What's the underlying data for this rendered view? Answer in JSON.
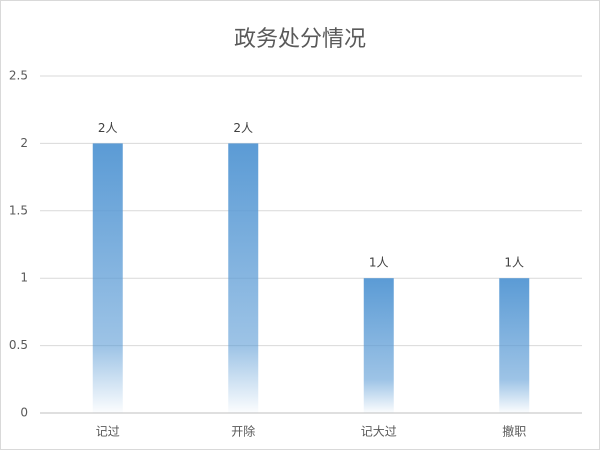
{
  "chart_data": {
    "type": "bar",
    "title": "政务处分情况",
    "categories": [
      "记过",
      "开除",
      "记大过",
      "撤职"
    ],
    "values": [
      2,
      2,
      1,
      1
    ],
    "value_labels": [
      "2人",
      "2人",
      "1人",
      "1人"
    ],
    "color": "#5b9bd5",
    "ylim": [
      0,
      2.5
    ],
    "yticks": [
      0,
      0.5,
      1,
      1.5,
      2,
      2.5
    ],
    "grid": true
  }
}
